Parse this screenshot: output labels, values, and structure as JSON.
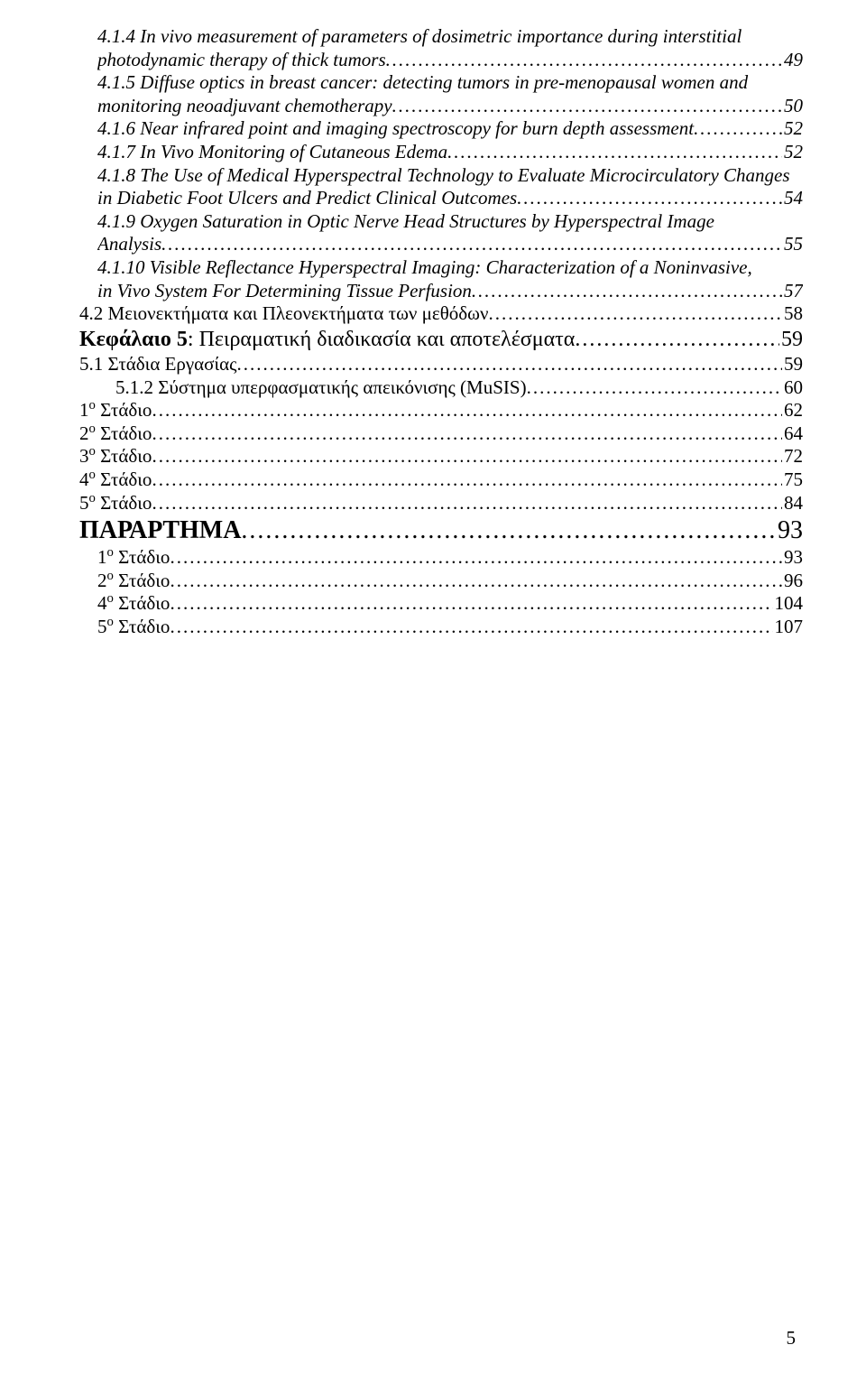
{
  "page_number": "5",
  "entries": [
    {
      "id": "e414",
      "indent": 1,
      "size": "fs-21",
      "italic": true,
      "bold": false,
      "lines": [
        "4.1.4 In vivo measurement of parameters of dosimetric importance during interstitial",
        "photodynamic therapy of thick tumors"
      ],
      "page": "49"
    },
    {
      "id": "e415",
      "indent": 1,
      "size": "fs-21",
      "italic": true,
      "bold": false,
      "lines": [
        "4.1.5 Diffuse optics in breast cancer: detecting tumors in pre-menopausal women and",
        "monitoring neoadjuvant chemotherapy"
      ],
      "page": "50"
    },
    {
      "id": "e416",
      "indent": 1,
      "size": "fs-21",
      "italic": true,
      "bold": false,
      "lines": [
        "4.1.6 Near infrared point and imaging spectroscopy for burn depth assessment"
      ],
      "page": "52"
    },
    {
      "id": "e417",
      "indent": 1,
      "size": "fs-21",
      "italic": true,
      "bold": false,
      "lines": [
        "4.1.7 In Vivo Monitoring of Cutaneous Edema"
      ],
      "page": "52"
    },
    {
      "id": "e418",
      "indent": 1,
      "size": "fs-21",
      "italic": true,
      "bold": false,
      "lines": [
        "4.1.8 The Use of Medical Hyperspectral Technology to Evaluate Microcirculatory Changes",
        "in Diabetic Foot Ulcers and Predict Clinical Outcomes"
      ],
      "page": "54"
    },
    {
      "id": "e419",
      "indent": 1,
      "size": "fs-21",
      "italic": true,
      "bold": false,
      "lines": [
        "4.1.9 Oxygen Saturation in Optic Nerve Head Structures by Hyperspectral Image",
        "Analysis"
      ],
      "page": "55"
    },
    {
      "id": "e4110",
      "indent": 1,
      "size": "fs-21",
      "italic": true,
      "bold": false,
      "lines": [
        "4.1.10 Visible Reflectance Hyperspectral Imaging: Characterization of a Noninvasive,",
        "in Vivo System For Determining Tissue Perfusion"
      ],
      "page": "57"
    },
    {
      "id": "e42",
      "indent": 0,
      "size": "fs-21",
      "italic": false,
      "bold": false,
      "lines": [
        "4.2 Μειονεκτήματα και Πλεονεκτήματα των μεθόδων"
      ],
      "page": "58"
    },
    {
      "id": "ch5",
      "indent": 0,
      "size": "fs-24",
      "italic": false,
      "bold": true,
      "lines": [
        "Κεφάλαιο 5"
      ],
      "suffix": ": Πειραματική διαδικασία και αποτελέσματα",
      "page": "59"
    },
    {
      "id": "e51",
      "indent": 0,
      "size": "fs-21",
      "italic": false,
      "bold": false,
      "lines": [
        "5.1 Στάδια Εργασίας"
      ],
      "page": "59"
    },
    {
      "id": "e512",
      "indent": 2,
      "size": "fs-21",
      "italic": false,
      "bold": false,
      "lines": [
        "5.1.2 Σύστημα υπερφασματικής απεικόνισης (MuSIS)"
      ],
      "page": "60"
    },
    {
      "id": "st1",
      "indent": 0,
      "size": "fs-21",
      "italic": false,
      "bold": false,
      "ord": "1",
      "ord_sup": "ο",
      "after": " Στάδιο",
      "page": "62"
    },
    {
      "id": "st2",
      "indent": 0,
      "size": "fs-21",
      "italic": false,
      "bold": false,
      "ord": "2",
      "ord_sup": "ο",
      "after": " Στάδιο",
      "page": "64"
    },
    {
      "id": "st3",
      "indent": 0,
      "size": "fs-21",
      "italic": false,
      "bold": false,
      "ord": "3",
      "ord_sup": "ο",
      "after": " Στάδιο",
      "page": "72"
    },
    {
      "id": "st4",
      "indent": 0,
      "size": "fs-21",
      "italic": false,
      "bold": false,
      "ord": "4",
      "ord_sup": "ο",
      "after": " Στάδιο",
      "page": "75"
    },
    {
      "id": "st5",
      "indent": 0,
      "size": "fs-21",
      "italic": false,
      "bold": false,
      "ord": "5",
      "ord_sup": "ο",
      "after": " Στάδιο",
      "page": "84"
    },
    {
      "id": "appx",
      "indent": 0,
      "size": "fs-28",
      "italic": false,
      "bold": true,
      "lines": [
        "ΠΑΡΑΡΤΗΜΑ"
      ],
      "page": "93"
    },
    {
      "id": "ast1",
      "indent": 3,
      "size": "fs-21",
      "italic": false,
      "bold": false,
      "ord": "1",
      "ord_sup": "ο",
      "after": " Στάδιο",
      "page": "93"
    },
    {
      "id": "ast2",
      "indent": 3,
      "size": "fs-21",
      "italic": false,
      "bold": false,
      "ord": "2",
      "ord_sup": "ο",
      "after": " Στάδιο",
      "page": "96"
    },
    {
      "id": "ast4",
      "indent": 3,
      "size": "fs-21",
      "italic": false,
      "bold": false,
      "ord": "4",
      "ord_sup": "ο",
      "after": " Στάδιο",
      "page": "104"
    },
    {
      "id": "ast5",
      "indent": 3,
      "size": "fs-21",
      "italic": false,
      "bold": false,
      "ord": "5",
      "ord_sup": "ο",
      "after": " Στάδιο",
      "page": "107"
    }
  ]
}
